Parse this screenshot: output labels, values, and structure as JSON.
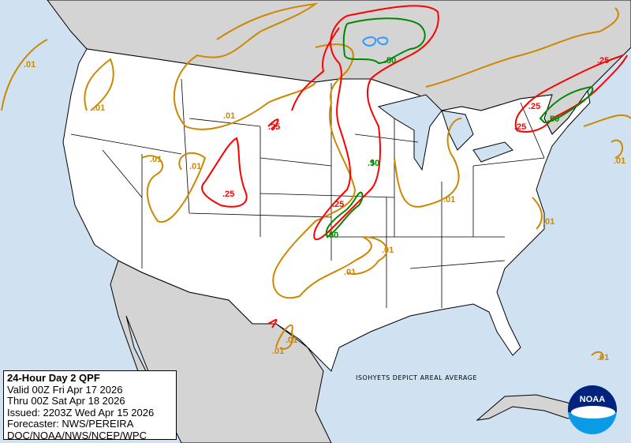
{
  "legend": {
    "title": "24-Hour Day 2 QPF",
    "valid": "Valid 00Z Fri Apr 17 2026",
    "thru": "Thru 00Z Sat Apr 18 2026",
    "issued": "Issued: 2203Z Wed Apr 15 2026",
    "forecaster": "Forecaster: NWS/PEREIRA",
    "agency": "DOC/NOAA/NWS/NCEP/WPC"
  },
  "note": "ISOHYETS DEPICT AREAL AVERAGE",
  "logo": {
    "text": "NOAA"
  },
  "colors": {
    "ocean": "#d0e2f2",
    "us_land": "#ffffff",
    "foreign_land": "#d4d4d4",
    "c001": "#cc8800",
    "c025": "#ff0000",
    "c050": "#008800",
    "c100": "#3399ff"
  },
  "contour_labels": {
    "a": ".01",
    "b": ".01",
    "c": ".01",
    "d": ".01",
    "e": ".01",
    "f": ".01",
    "g": ".01",
    "h": ".01",
    "i": ".01",
    "j": ".01",
    "k": ".01",
    "l": ".01",
    "m": ".01",
    "r1": ".25",
    "r2": ".25",
    "r3": ".25",
    "r4": ".25",
    "r5": ".25",
    "r6": ".25",
    "g1": ".50",
    "g2": ".50",
    "g3": ".50",
    "g4": ".50"
  }
}
